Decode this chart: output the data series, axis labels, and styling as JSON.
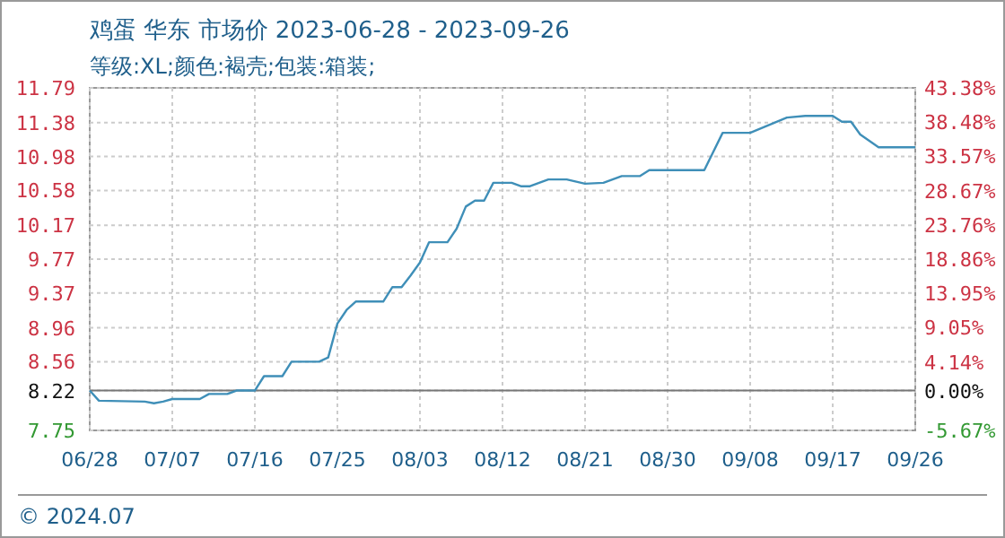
{
  "chart_data": {
    "type": "line",
    "title": "鸡蛋 华东 市场价 2023-06-28 - 2023-09-26",
    "subtitle": "等级:XL;颜色:褐壳;包装:箱装;",
    "x": [
      "2023-06-28",
      "2023-06-29",
      "2023-07-04",
      "2023-07-05",
      "2023-07-06",
      "2023-07-07",
      "2023-07-10",
      "2023-07-11",
      "2023-07-13",
      "2023-07-14",
      "2023-07-16",
      "2023-07-17",
      "2023-07-19",
      "2023-07-20",
      "2023-07-23",
      "2023-07-24",
      "2023-07-25",
      "2023-07-26",
      "2023-07-27",
      "2023-07-30",
      "2023-07-31",
      "2023-08-01",
      "2023-08-02",
      "2023-08-03",
      "2023-08-04",
      "2023-08-06",
      "2023-08-07",
      "2023-08-08",
      "2023-08-09",
      "2023-08-10",
      "2023-08-11",
      "2023-08-13",
      "2023-08-14",
      "2023-08-15",
      "2023-08-17",
      "2023-08-19",
      "2023-08-21",
      "2023-08-23",
      "2023-08-25",
      "2023-08-27",
      "2023-08-28",
      "2023-09-03",
      "2023-09-05",
      "2023-09-08",
      "2023-09-10",
      "2023-09-12",
      "2023-09-14",
      "2023-09-17",
      "2023-09-18",
      "2023-09-19",
      "2023-09-20",
      "2023-09-22",
      "2023-09-26"
    ],
    "series": [
      {
        "color": "#3f8fb8",
        "values": [
          8.22,
          8.1,
          8.09,
          8.07,
          8.09,
          8.12,
          8.12,
          8.18,
          8.18,
          8.22,
          8.22,
          8.39,
          8.39,
          8.56,
          8.56,
          8.61,
          9.01,
          9.17,
          9.27,
          9.27,
          9.44,
          9.44,
          9.58,
          9.73,
          9.97,
          9.97,
          10.13,
          10.39,
          10.46,
          10.46,
          10.67,
          10.67,
          10.63,
          10.63,
          10.71,
          10.71,
          10.66,
          10.67,
          10.75,
          10.75,
          10.82,
          10.82,
          11.26,
          11.26,
          11.35,
          11.44,
          11.46,
          11.46,
          11.39,
          11.39,
          11.24,
          11.09,
          11.09
        ]
      }
    ],
    "xlim": [
      "2023-06-28",
      "2023-09-26"
    ],
    "xticks": [
      {
        "value": "2023-06-28",
        "label": "06/28"
      },
      {
        "value": "2023-07-07",
        "label": "07/07"
      },
      {
        "value": "2023-07-16",
        "label": "07/16"
      },
      {
        "value": "2023-07-25",
        "label": "07/25"
      },
      {
        "value": "2023-08-03",
        "label": "08/03"
      },
      {
        "value": "2023-08-12",
        "label": "08/12"
      },
      {
        "value": "2023-08-21",
        "label": "08/21"
      },
      {
        "value": "2023-08-30",
        "label": "08/30"
      },
      {
        "value": "2023-09-08",
        "label": "09/08"
      },
      {
        "value": "2023-09-17",
        "label": "09/17"
      },
      {
        "value": "2023-09-26",
        "label": "09/26"
      }
    ],
    "ylim": [
      7.75,
      11.79
    ],
    "yticks": [
      7.75,
      8.22,
      8.56,
      8.96,
      9.37,
      9.77,
      10.17,
      10.58,
      10.98,
      11.38,
      11.79
    ],
    "y2lim": [
      -5.67,
      43.38
    ],
    "y2ticks": [
      {
        "value": -5.67,
        "label": "-5.67%"
      },
      {
        "value": 0,
        "label": "0.00%"
      },
      {
        "value": 4.14,
        "label": "4.14%"
      },
      {
        "value": 9.05,
        "label": "9.05%"
      },
      {
        "value": 13.95,
        "label": "13.95%"
      },
      {
        "value": 18.86,
        "label": "18.86%"
      },
      {
        "value": 23.76,
        "label": "23.76%"
      },
      {
        "value": 28.67,
        "label": "28.67%"
      },
      {
        "value": 33.57,
        "label": "33.57%"
      },
      {
        "value": 38.48,
        "label": "38.48%"
      },
      {
        "value": 43.38,
        "label": "43.38%"
      }
    ],
    "ref_lines": [
      {
        "axis": "y",
        "value": 8.22,
        "color": "#777777"
      }
    ],
    "grid": true,
    "marker": "none",
    "line_style": "solid",
    "annotations": [
      "© 2024.07"
    ]
  }
}
